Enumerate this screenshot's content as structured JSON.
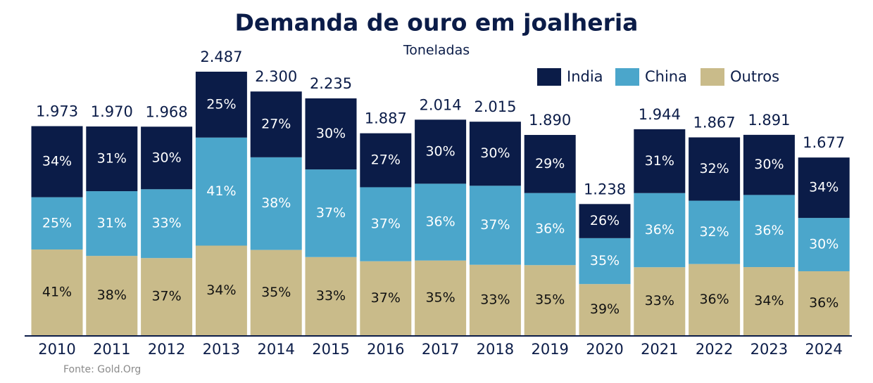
{
  "chart_data": {
    "type": "stacked_bar",
    "title": "Demanda de ouro em joalheria",
    "subtitle": "Toneladas",
    "source": "Fonte: Gold.Org",
    "categories": [
      "2010",
      "2011",
      "2012",
      "2013",
      "2014",
      "2015",
      "2016",
      "2017",
      "2018",
      "2019",
      "2020",
      "2021",
      "2022",
      "2023",
      "2024"
    ],
    "series": [
      {
        "name": "India",
        "color": "#0b1c48",
        "text_color": "#ffffff",
        "values": [
          34,
          31,
          30,
          25,
          27,
          30,
          27,
          30,
          30,
          29,
          26,
          31,
          32,
          30,
          34
        ],
        "value_labels": [
          "34%",
          "31%",
          "30%",
          "25%",
          "27%",
          "30%",
          "27%",
          "30%",
          "30%",
          "29%",
          "26%",
          "31%",
          "32%",
          "30%",
          "34%"
        ]
      },
      {
        "name": "China",
        "color": "#4ba6cb",
        "text_color": "#ffffff",
        "values": [
          25,
          31,
          33,
          41,
          38,
          37,
          37,
          36,
          37,
          36,
          35,
          36,
          32,
          36,
          30
        ],
        "value_labels": [
          "25%",
          "31%",
          "33%",
          "41%",
          "38%",
          "37%",
          "37%",
          "36%",
          "37%",
          "36%",
          "35%",
          "36%",
          "32%",
          "36%",
          "30%"
        ]
      },
      {
        "name": "Outros",
        "color": "#c9bb8a",
        "text_color": "#111111",
        "values": [
          41,
          38,
          37,
          34,
          35,
          33,
          37,
          35,
          33,
          35,
          39,
          33,
          36,
          34,
          36
        ],
        "value_labels": [
          "41%",
          "38%",
          "37%",
          "34%",
          "35%",
          "33%",
          "37%",
          "35%",
          "33%",
          "35%",
          "39%",
          "33%",
          "36%",
          "34%",
          "36%"
        ]
      }
    ],
    "totals": {
      "values": [
        1973,
        1970,
        1968,
        2487,
        2300,
        2235,
        1887,
        2014,
        2015,
        1890,
        1238,
        1944,
        1867,
        1891,
        1677
      ],
      "value_labels": [
        "1.973",
        "1.970",
        "1.968",
        "2.487",
        "2.300",
        "2.235",
        "1.887",
        "2.014",
        "2.015",
        "1.890",
        "1.238",
        "1.944",
        "1.867",
        "1.891",
        "1.677"
      ]
    },
    "legend": "top-right"
  }
}
